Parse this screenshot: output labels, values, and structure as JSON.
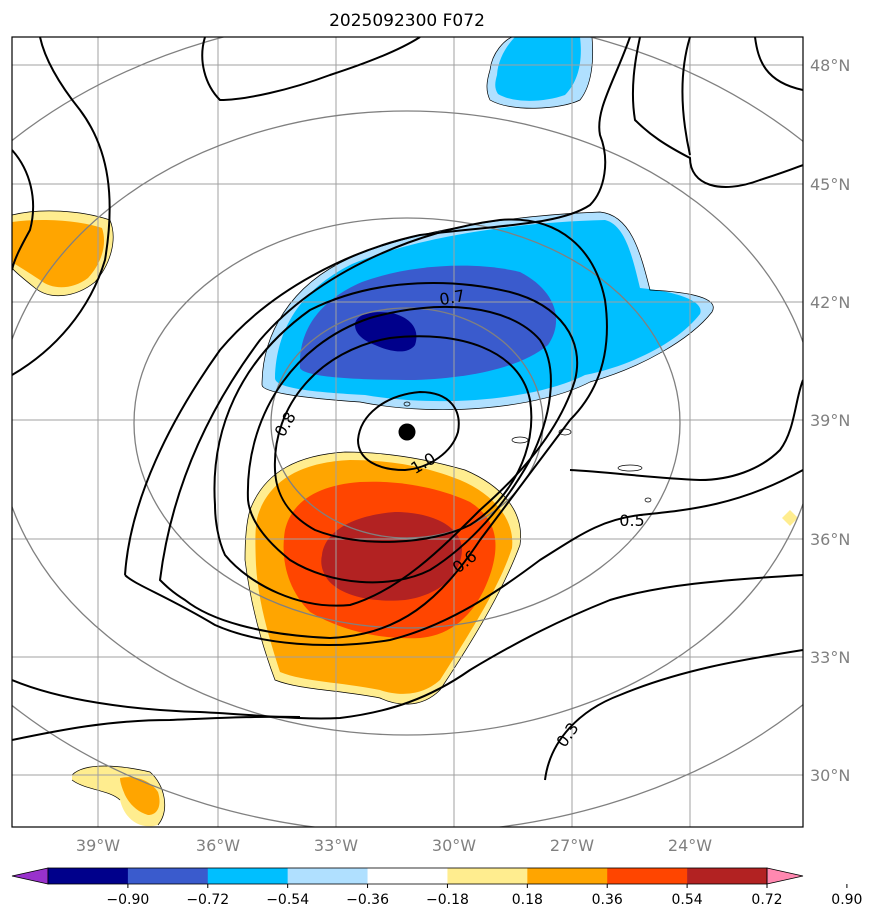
{
  "title": "2025092300 F072",
  "map": {
    "lon_ticks": [
      "39°W",
      "36°W",
      "33°W",
      "30°W",
      "27°W",
      "24°W"
    ],
    "lat_ticks": [
      "48°N",
      "45°N",
      "42°N",
      "39°N",
      "36°N",
      "33°N",
      "30°N"
    ],
    "grid": true,
    "range_rings": 4,
    "storm_center_marker": "black-dot"
  },
  "contour_labels": [
    "0.7",
    "0.8",
    "1.0",
    "0.5",
    "0.6",
    "0.3"
  ],
  "colorbar": {
    "ticks": [
      "−0.90",
      "−0.72",
      "−0.54",
      "−0.36",
      "−0.18",
      "0.18",
      "0.36",
      "0.54",
      "0.72",
      "0.90"
    ],
    "colors": [
      "#9932CC",
      "#00008B",
      "#3A5BCD",
      "#00BFFF",
      "#B0E0FF",
      "#FFFFFF",
      "#FFED8F",
      "#FFA500",
      "#FF4500",
      "#B22222",
      "#FF88B0"
    ],
    "extend": "both"
  }
}
